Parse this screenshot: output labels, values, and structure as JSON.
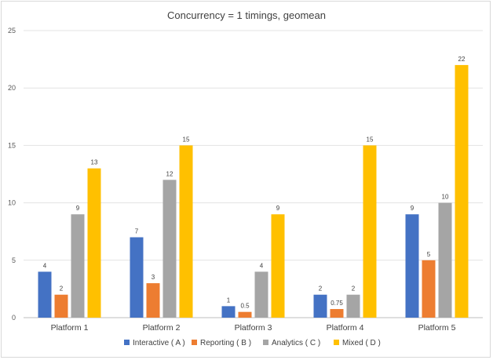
{
  "chart_data": {
    "type": "bar",
    "title": "Concurrency = 1 timings, geomean",
    "xlabel": "",
    "ylabel": "",
    "categories": [
      "Platform 1",
      "Platform 2",
      "Platform 3",
      "Platform 4",
      "Platform 5"
    ],
    "ylim": [
      0,
      25
    ],
    "yticks": [
      0,
      5,
      10,
      15,
      20,
      25
    ],
    "grid": true,
    "legend_position": "bottom",
    "series": [
      {
        "name": "Interactive ( A )",
        "color": "#4472C4",
        "values": [
          4,
          7,
          1,
          2,
          9
        ],
        "labels": [
          "4",
          "7",
          "1",
          "2",
          "9"
        ]
      },
      {
        "name": "Reporting ( B )",
        "color": "#ED7D31",
        "values": [
          2,
          3,
          0.5,
          0.75,
          5
        ],
        "labels": [
          "2",
          "3",
          "0.5",
          "0.75",
          "5"
        ]
      },
      {
        "name": "Analytics ( C )",
        "color": "#A5A5A5",
        "values": [
          9,
          12,
          4,
          2,
          10
        ],
        "labels": [
          "9",
          "12",
          "4",
          "2",
          "10"
        ]
      },
      {
        "name": "Mixed ( D )",
        "color": "#FFC000",
        "values": [
          13,
          15,
          9,
          15,
          22
        ],
        "labels": [
          "13",
          "15",
          "9",
          "15",
          "22"
        ]
      }
    ]
  }
}
